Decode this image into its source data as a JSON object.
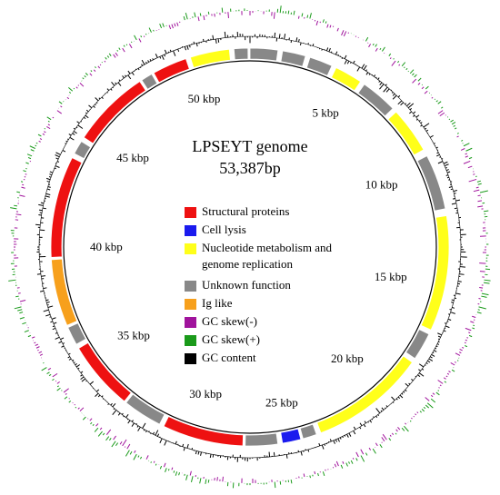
{
  "title": "LPSEYT genome",
  "subtitle": {
    "value": 53387,
    "label": "53,387bp"
  },
  "ticks": [
    {
      "value": 5000,
      "label": "5 kbp"
    },
    {
      "value": 10000,
      "label": "10 kbp"
    },
    {
      "value": 15000,
      "label": "15 kbp"
    },
    {
      "value": 20000,
      "label": "20 kbp"
    },
    {
      "value": 25000,
      "label": "25 kbp"
    },
    {
      "value": 30000,
      "label": "30 kbp"
    },
    {
      "value": 35000,
      "label": "35 kbp"
    },
    {
      "value": 40000,
      "label": "40 kbp"
    },
    {
      "value": 45000,
      "label": "45 kbp"
    },
    {
      "value": 50000,
      "label": "50 kbp"
    }
  ],
  "legend": [
    {
      "label": "Structural proteins",
      "color": "#ee1111"
    },
    {
      "label": "Cell lysis",
      "color": "#1a1aee"
    },
    {
      "label": "Nucleotide metabolism and genome replication",
      "color": "#ffff1a"
    },
    {
      "label": "Unknown function",
      "color": "#888888"
    },
    {
      "label": "Ig like",
      "color": "#f7a01c"
    },
    {
      "label": "GC skew(-)",
      "color": "#a0139c"
    },
    {
      "label": "GC skew(+)",
      "color": "#1a9a1a"
    },
    {
      "label": "GC content",
      "color": "#000000"
    }
  ],
  "genes": [
    {
      "start": 0,
      "end": 1200,
      "category": 3
    },
    {
      "start": 1400,
      "end": 2400,
      "category": 3
    },
    {
      "start": 2600,
      "end": 3600,
      "category": 3
    },
    {
      "start": 3800,
      "end": 5000,
      "category": 2
    },
    {
      "start": 5200,
      "end": 6800,
      "category": 3
    },
    {
      "start": 7000,
      "end": 9000,
      "category": 2
    },
    {
      "start": 9300,
      "end": 11700,
      "category": 3
    },
    {
      "start": 12000,
      "end": 17000,
      "category": 2
    },
    {
      "start": 17200,
      "end": 18400,
      "category": 3
    },
    {
      "start": 18600,
      "end": 23600,
      "category": 2
    },
    {
      "start": 23800,
      "end": 24400,
      "category": 3
    },
    {
      "start": 24500,
      "end": 25300,
      "category": 1
    },
    {
      "start": 25500,
      "end": 26900,
      "category": 3
    },
    {
      "start": 27000,
      "end": 30500,
      "category": 0
    },
    {
      "start": 30700,
      "end": 32400,
      "category": 3
    },
    {
      "start": 32500,
      "end": 35500,
      "category": 0
    },
    {
      "start": 35700,
      "end": 36500,
      "category": 3
    },
    {
      "start": 36600,
      "end": 39500,
      "category": 4
    },
    {
      "start": 39600,
      "end": 44000,
      "category": 0
    },
    {
      "start": 44200,
      "end": 44800,
      "category": 3
    },
    {
      "start": 45000,
      "end": 48400,
      "category": 0
    },
    {
      "start": 48500,
      "end": 49000,
      "category": 3
    },
    {
      "start": 49100,
      "end": 50600,
      "category": 0
    },
    {
      "start": 50800,
      "end": 52500,
      "category": 2
    },
    {
      "start": 52700,
      "end": 53300,
      "category": 3
    }
  ]
}
